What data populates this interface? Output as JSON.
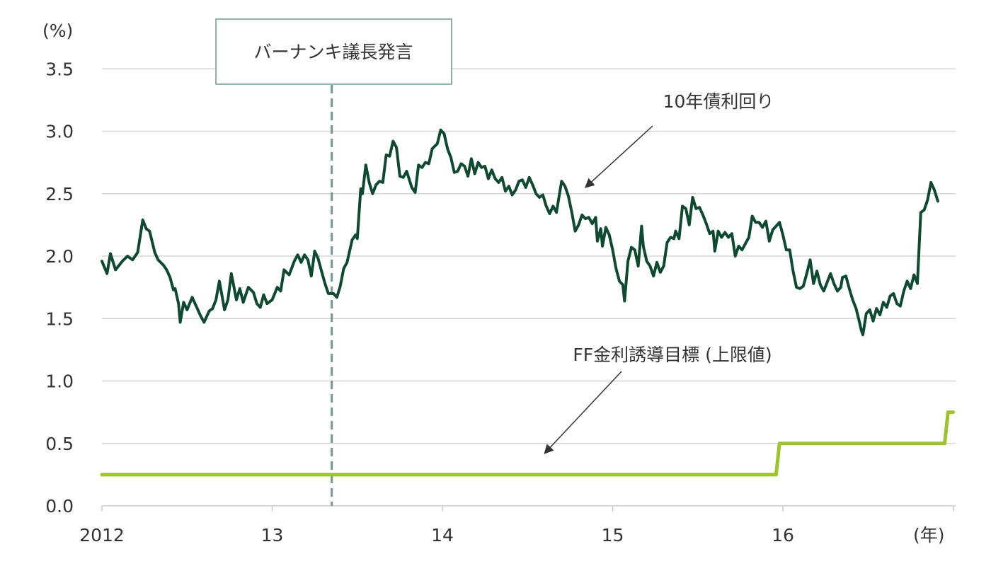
{
  "chart_data": {
    "type": "line",
    "ylabel": "(%)",
    "xlabel": "(年)",
    "ylim": [
      0,
      3.5
    ],
    "y_ticks": [
      "0.0",
      "0.5",
      "1.0",
      "1.5",
      "2.0",
      "2.5",
      "3.0",
      "3.5"
    ],
    "xlim": [
      2012.0,
      2017.0
    ],
    "x_ticks": [
      {
        "label": "2012",
        "x": 2012.0
      },
      {
        "label": "13",
        "x": 2013.0
      },
      {
        "label": "14",
        "x": 2014.0
      },
      {
        "label": "15",
        "x": 2015.0
      },
      {
        "label": "16",
        "x": 2016.0
      }
    ],
    "grid": true,
    "series": [
      {
        "name": "10年債利回り",
        "color": "#0d4a30",
        "points": [
          [
            2012.0,
            1.96
          ],
          [
            2012.03,
            1.86
          ],
          [
            2012.05,
            2.02
          ],
          [
            2012.08,
            1.89
          ],
          [
            2012.12,
            1.96
          ],
          [
            2012.15,
            2.0
          ],
          [
            2012.18,
            1.97
          ],
          [
            2012.21,
            2.03
          ],
          [
            2012.24,
            2.29
          ],
          [
            2012.26,
            2.22
          ],
          [
            2012.28,
            2.2
          ],
          [
            2012.31,
            2.03
          ],
          [
            2012.33,
            1.97
          ],
          [
            2012.36,
            1.93
          ],
          [
            2012.38,
            1.89
          ],
          [
            2012.4,
            1.83
          ],
          [
            2012.42,
            1.73
          ],
          [
            2012.43,
            1.74
          ],
          [
            2012.45,
            1.62
          ],
          [
            2012.46,
            1.47
          ],
          [
            2012.48,
            1.63
          ],
          [
            2012.5,
            1.57
          ],
          [
            2012.53,
            1.67
          ],
          [
            2012.55,
            1.61
          ],
          [
            2012.58,
            1.52
          ],
          [
            2012.6,
            1.47
          ],
          [
            2012.63,
            1.56
          ],
          [
            2012.65,
            1.58
          ],
          [
            2012.67,
            1.65
          ],
          [
            2012.69,
            1.8
          ],
          [
            2012.72,
            1.57
          ],
          [
            2012.74,
            1.65
          ],
          [
            2012.76,
            1.86
          ],
          [
            2012.79,
            1.65
          ],
          [
            2012.81,
            1.74
          ],
          [
            2012.83,
            1.63
          ],
          [
            2012.86,
            1.75
          ],
          [
            2012.89,
            1.71
          ],
          [
            2012.91,
            1.62
          ],
          [
            2012.93,
            1.59
          ],
          [
            2012.95,
            1.69
          ],
          [
            2012.97,
            1.62
          ],
          [
            2013.0,
            1.65
          ],
          [
            2013.03,
            1.75
          ],
          [
            2013.05,
            1.72
          ],
          [
            2013.07,
            1.89
          ],
          [
            2013.1,
            1.85
          ],
          [
            2013.13,
            1.96
          ],
          [
            2013.15,
            2.01
          ],
          [
            2013.17,
            1.95
          ],
          [
            2013.19,
            2.01
          ],
          [
            2013.21,
            1.97
          ],
          [
            2013.23,
            1.84
          ],
          [
            2013.25,
            2.04
          ],
          [
            2013.27,
            1.98
          ],
          [
            2013.29,
            1.88
          ],
          [
            2013.31,
            1.78
          ],
          [
            2013.33,
            1.7
          ],
          [
            2013.36,
            1.7
          ],
          [
            2013.38,
            1.67
          ],
          [
            2013.4,
            1.76
          ],
          [
            2013.42,
            1.9
          ],
          [
            2013.44,
            1.95
          ],
          [
            2013.47,
            2.13
          ],
          [
            2013.49,
            2.17
          ],
          [
            2013.5,
            2.14
          ],
          [
            2013.52,
            2.54
          ],
          [
            2013.53,
            2.5
          ],
          [
            2013.55,
            2.73
          ],
          [
            2013.57,
            2.59
          ],
          [
            2013.59,
            2.5
          ],
          [
            2013.61,
            2.57
          ],
          [
            2013.63,
            2.6
          ],
          [
            2013.65,
            2.59
          ],
          [
            2013.67,
            2.81
          ],
          [
            2013.69,
            2.8
          ],
          [
            2013.71,
            2.92
          ],
          [
            2013.73,
            2.87
          ],
          [
            2013.75,
            2.64
          ],
          [
            2013.77,
            2.63
          ],
          [
            2013.79,
            2.68
          ],
          [
            2013.82,
            2.55
          ],
          [
            2013.84,
            2.51
          ],
          [
            2013.86,
            2.73
          ],
          [
            2013.88,
            2.71
          ],
          [
            2013.9,
            2.75
          ],
          [
            2013.92,
            2.74
          ],
          [
            2013.94,
            2.86
          ],
          [
            2013.97,
            2.9
          ],
          [
            2013.99,
            3.01
          ],
          [
            2014.01,
            2.98
          ],
          [
            2014.03,
            2.86
          ],
          [
            2014.05,
            2.79
          ],
          [
            2014.07,
            2.67
          ],
          [
            2014.09,
            2.68
          ],
          [
            2014.11,
            2.74
          ],
          [
            2014.13,
            2.72
          ],
          [
            2014.15,
            2.64
          ],
          [
            2014.17,
            2.78
          ],
          [
            2014.19,
            2.66
          ],
          [
            2014.21,
            2.75
          ],
          [
            2014.23,
            2.71
          ],
          [
            2014.25,
            2.72
          ],
          [
            2014.27,
            2.62
          ],
          [
            2014.29,
            2.69
          ],
          [
            2014.31,
            2.62
          ],
          [
            2014.33,
            2.59
          ],
          [
            2014.35,
            2.63
          ],
          [
            2014.37,
            2.52
          ],
          [
            2014.39,
            2.56
          ],
          [
            2014.41,
            2.49
          ],
          [
            2014.43,
            2.53
          ],
          [
            2014.45,
            2.6
          ],
          [
            2014.47,
            2.61
          ],
          [
            2014.49,
            2.55
          ],
          [
            2014.51,
            2.63
          ],
          [
            2014.53,
            2.57
          ],
          [
            2014.55,
            2.5
          ],
          [
            2014.57,
            2.47
          ],
          [
            2014.59,
            2.49
          ],
          [
            2014.61,
            2.4
          ],
          [
            2014.63,
            2.34
          ],
          [
            2014.65,
            2.4
          ],
          [
            2014.67,
            2.35
          ],
          [
            2014.7,
            2.6
          ],
          [
            2014.72,
            2.56
          ],
          [
            2014.74,
            2.48
          ],
          [
            2014.76,
            2.35
          ],
          [
            2014.78,
            2.2
          ],
          [
            2014.8,
            2.25
          ],
          [
            2014.82,
            2.33
          ],
          [
            2014.84,
            2.3
          ],
          [
            2014.86,
            2.31
          ],
          [
            2014.88,
            2.26
          ],
          [
            2014.9,
            2.31
          ],
          [
            2014.91,
            2.12
          ],
          [
            2014.93,
            2.22
          ],
          [
            2014.94,
            2.08
          ],
          [
            2014.96,
            2.23
          ],
          [
            2014.98,
            2.17
          ],
          [
            2015.0,
            2.05
          ],
          [
            2015.02,
            1.9
          ],
          [
            2015.04,
            1.8
          ],
          [
            2015.06,
            1.77
          ],
          [
            2015.07,
            1.64
          ],
          [
            2015.09,
            1.96
          ],
          [
            2015.11,
            2.07
          ],
          [
            2015.13,
            2.05
          ],
          [
            2015.15,
            1.92
          ],
          [
            2015.17,
            2.24
          ],
          [
            2015.18,
            2.08
          ],
          [
            2015.2,
            1.96
          ],
          [
            2015.22,
            1.92
          ],
          [
            2015.24,
            1.84
          ],
          [
            2015.26,
            1.95
          ],
          [
            2015.28,
            1.87
          ],
          [
            2015.3,
            1.92
          ],
          [
            2015.32,
            2.11
          ],
          [
            2015.34,
            2.15
          ],
          [
            2015.36,
            2.14
          ],
          [
            2015.37,
            2.2
          ],
          [
            2015.39,
            2.14
          ],
          [
            2015.41,
            2.4
          ],
          [
            2015.43,
            2.38
          ],
          [
            2015.45,
            2.25
          ],
          [
            2015.47,
            2.47
          ],
          [
            2015.49,
            2.38
          ],
          [
            2015.51,
            2.39
          ],
          [
            2015.53,
            2.33
          ],
          [
            2015.55,
            2.26
          ],
          [
            2015.57,
            2.18
          ],
          [
            2015.59,
            2.2
          ],
          [
            2015.6,
            2.04
          ],
          [
            2015.62,
            2.2
          ],
          [
            2015.64,
            2.15
          ],
          [
            2015.66,
            2.19
          ],
          [
            2015.68,
            2.15
          ],
          [
            2015.7,
            2.18
          ],
          [
            2015.72,
            2.0
          ],
          [
            2015.74,
            2.08
          ],
          [
            2015.76,
            2.05
          ],
          [
            2015.78,
            2.1
          ],
          [
            2015.8,
            2.15
          ],
          [
            2015.82,
            2.32
          ],
          [
            2015.84,
            2.27
          ],
          [
            2015.86,
            2.27
          ],
          [
            2015.88,
            2.23
          ],
          [
            2015.9,
            2.28
          ],
          [
            2015.92,
            2.12
          ],
          [
            2015.94,
            2.21
          ],
          [
            2015.96,
            2.24
          ],
          [
            2015.98,
            2.27
          ],
          [
            2016.0,
            2.17
          ],
          [
            2016.02,
            2.05
          ],
          [
            2016.04,
            2.05
          ],
          [
            2016.06,
            1.88
          ],
          [
            2016.08,
            1.75
          ],
          [
            2016.1,
            1.74
          ],
          [
            2016.12,
            1.76
          ],
          [
            2016.14,
            1.86
          ],
          [
            2016.16,
            1.97
          ],
          [
            2016.18,
            1.78
          ],
          [
            2016.2,
            1.88
          ],
          [
            2016.22,
            1.77
          ],
          [
            2016.24,
            1.72
          ],
          [
            2016.26,
            1.79
          ],
          [
            2016.28,
            1.86
          ],
          [
            2016.3,
            1.78
          ],
          [
            2016.32,
            1.72
          ],
          [
            2016.34,
            1.75
          ],
          [
            2016.35,
            1.83
          ],
          [
            2016.37,
            1.84
          ],
          [
            2016.39,
            1.74
          ],
          [
            2016.41,
            1.65
          ],
          [
            2016.43,
            1.58
          ],
          [
            2016.45,
            1.47
          ],
          [
            2016.46,
            1.41
          ],
          [
            2016.47,
            1.37
          ],
          [
            2016.49,
            1.54
          ],
          [
            2016.51,
            1.57
          ],
          [
            2016.53,
            1.48
          ],
          [
            2016.55,
            1.58
          ],
          [
            2016.57,
            1.53
          ],
          [
            2016.59,
            1.63
          ],
          [
            2016.61,
            1.59
          ],
          [
            2016.63,
            1.68
          ],
          [
            2016.65,
            1.7
          ],
          [
            2016.67,
            1.62
          ],
          [
            2016.69,
            1.6
          ],
          [
            2016.71,
            1.72
          ],
          [
            2016.73,
            1.8
          ],
          [
            2016.75,
            1.74
          ],
          [
            2016.77,
            1.85
          ],
          [
            2016.79,
            1.78
          ],
          [
            2016.81,
            2.35
          ],
          [
            2016.83,
            2.37
          ],
          [
            2016.85,
            2.45
          ],
          [
            2016.87,
            2.59
          ],
          [
            2016.89,
            2.53
          ],
          [
            2016.91,
            2.44
          ]
        ]
      },
      {
        "name": "FF金利誘導目標 (上限値)",
        "color": "#9dc42c",
        "points": [
          [
            2012.0,
            0.25
          ],
          [
            2015.96,
            0.25
          ],
          [
            2015.98,
            0.5
          ],
          [
            2016.95,
            0.5
          ],
          [
            2016.97,
            0.75
          ],
          [
            2017.0,
            0.75
          ]
        ]
      }
    ],
    "vline": {
      "x": 2013.35,
      "label": "バーナンキ議長発言",
      "color": "#6d9a8a"
    },
    "annotations": [
      {
        "text": "10年債利回り",
        "target": [
          2014.84,
          2.55
        ]
      },
      {
        "text": "FF金利誘導目標 (上限値)",
        "target": [
          2014.6,
          0.42
        ]
      }
    ]
  }
}
